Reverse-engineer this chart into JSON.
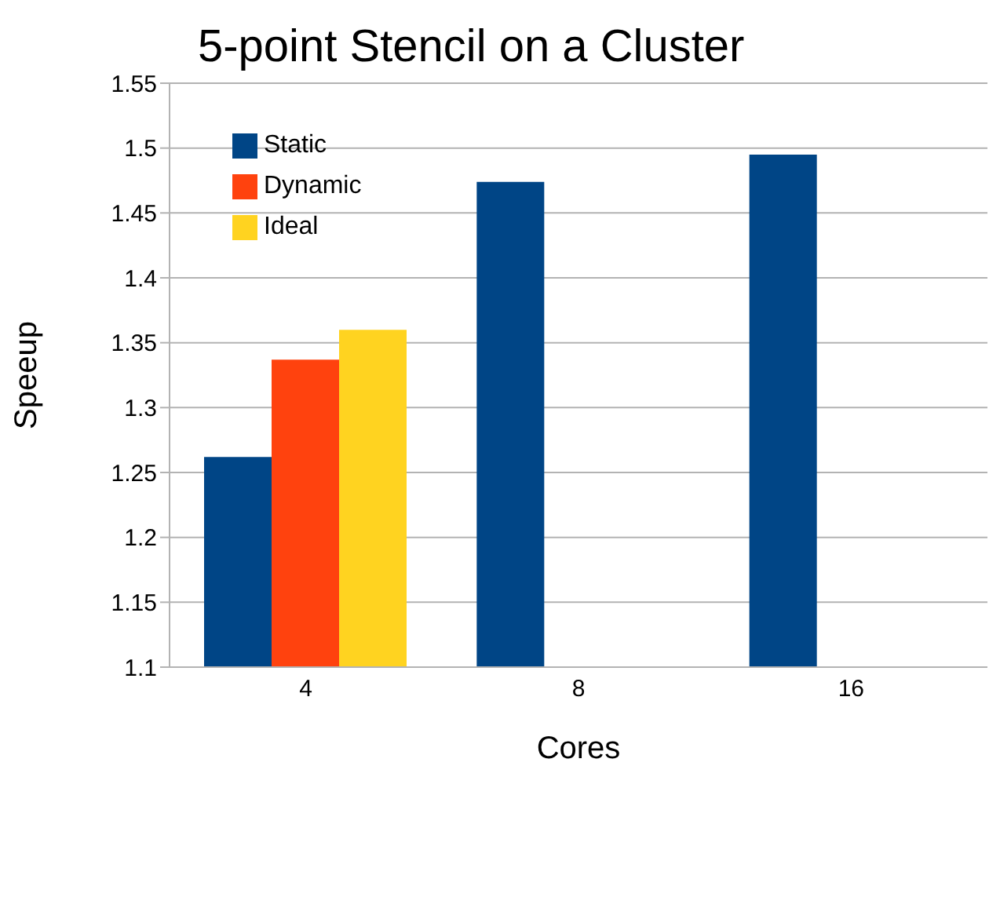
{
  "chart_data": {
    "type": "bar",
    "title": "5-point Stencil on a Cluster",
    "xlabel": "Cores",
    "ylabel": "Speeup",
    "categories": [
      "4",
      "8",
      "16"
    ],
    "series": [
      {
        "name": "Static",
        "color": "#004586",
        "values": [
          1.262,
          1.474,
          1.495
        ]
      },
      {
        "name": "Dynamic",
        "color": "#ff420e",
        "values": [
          1.337,
          null,
          null
        ]
      },
      {
        "name": "Ideal",
        "color": "#ffd320",
        "values": [
          1.36,
          null,
          null
        ]
      }
    ],
    "ylim": [
      1.1,
      1.55
    ],
    "yticks": [
      1.1,
      1.15,
      1.2,
      1.25,
      1.3,
      1.35,
      1.4,
      1.45,
      1.5,
      1.55
    ],
    "grid": "y",
    "legend": "top left"
  }
}
